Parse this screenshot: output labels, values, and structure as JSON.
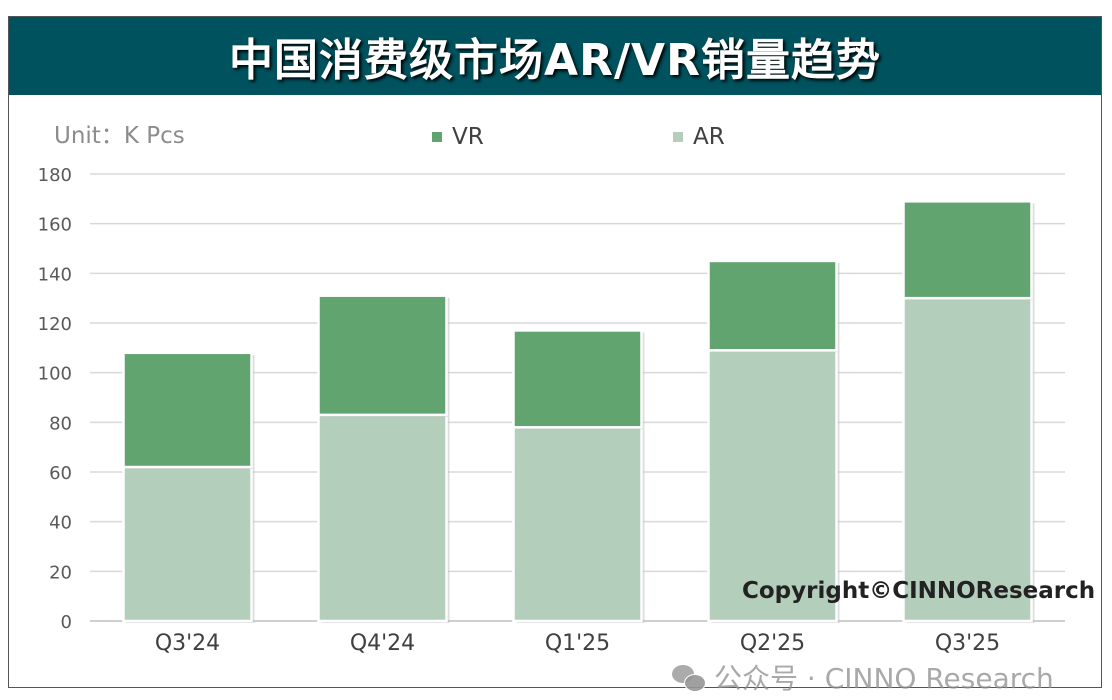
{
  "chart_data": {
    "type": "bar",
    "stacked": true,
    "title": "中国消费级市场AR/VR销量趋势",
    "unit_label": "Unit：K Pcs",
    "categories": [
      "Q3'24",
      "Q4'24",
      "Q1'25",
      "Q2'25",
      "Q3'25"
    ],
    "series": [
      {
        "name": "AR",
        "values": [
          62,
          83,
          78,
          109,
          130
        ],
        "color": "#b3cfbc"
      },
      {
        "name": "VR",
        "values": [
          46,
          48,
          39,
          36,
          39
        ],
        "color": "#62a470"
      }
    ],
    "legend_order": [
      "VR",
      "AR"
    ],
    "legend_placement": "top",
    "ylim": [
      0,
      180
    ],
    "yticks": [
      "0",
      "20",
      "40",
      "60",
      "80",
      "100",
      "120",
      "140",
      "160",
      "180"
    ],
    "grid": true
  },
  "copyright": "Copyright©CINNOResearch",
  "watermark": "公众号 · CINNO Research",
  "colors": {
    "title_bar": "#00525e",
    "grid": "#d9d9d9"
  }
}
